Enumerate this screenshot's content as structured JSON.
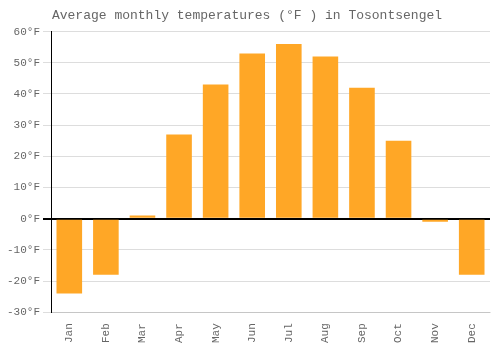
{
  "chart_data": {
    "type": "bar",
    "title": "Average monthly temperatures (°F ) in Tosontsengel",
    "categories": [
      "Jan",
      "Feb",
      "Mar",
      "Apr",
      "May",
      "Jun",
      "Jul",
      "Aug",
      "Sep",
      "Oct",
      "Nov",
      "Dec"
    ],
    "values": [
      -24,
      -18,
      1,
      27,
      43,
      53,
      56,
      52,
      42,
      25,
      -1,
      -18
    ],
    "color": "#FFA726",
    "ylim": [
      -30,
      60
    ],
    "yticks": [
      {
        "value": -30,
        "label": "-30°F"
      },
      {
        "value": -20,
        "label": "-20°F"
      },
      {
        "value": -10,
        "label": "-10°F"
      },
      {
        "value": 0,
        "label": "0°F"
      },
      {
        "value": 10,
        "label": "10°F"
      },
      {
        "value": 20,
        "label": "20°F"
      },
      {
        "value": 30,
        "label": "30°F"
      },
      {
        "value": 40,
        "label": "40°F"
      },
      {
        "value": 50,
        "label": "50°F"
      },
      {
        "value": 60,
        "label": "60°F"
      }
    ],
    "grid": true
  }
}
